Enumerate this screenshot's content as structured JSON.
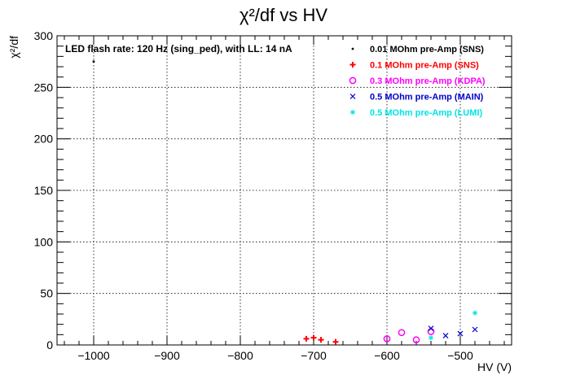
{
  "chart_data": {
    "type": "scatter",
    "title": "χ²/df vs HV",
    "xlabel": "HV (V)",
    "ylabel": "χ²/df",
    "xlim": [
      -1050,
      -430
    ],
    "ylim": [
      0,
      300
    ],
    "x_ticks": [
      -1000,
      -900,
      -800,
      -700,
      -600,
      -500
    ],
    "y_ticks": [
      0,
      50,
      100,
      150,
      200,
      250,
      300
    ],
    "grid": true,
    "legend_position": "top-right",
    "header_text": "LED flash rate: 120 Hz  (sing_ped), with LL: 14 nA",
    "series": [
      {
        "name": "0.01 MOhm pre-Amp (SNS)",
        "marker": "dot",
        "color": "#000000",
        "points": [
          [
            -1000,
            275
          ]
        ]
      },
      {
        "name": "0.1 MOhm pre-Amp (SNS)",
        "marker": "plus",
        "color": "#ff0000",
        "points": [
          [
            -710,
            6
          ],
          [
            -700,
            7
          ],
          [
            -690,
            5
          ],
          [
            -670,
            3
          ]
        ]
      },
      {
        "name": "0.3 MOhm pre-Amp (KDPA)",
        "marker": "circle",
        "color": "#ff00ff",
        "points": [
          [
            -600,
            6
          ],
          [
            -580,
            12
          ],
          [
            -560,
            5
          ],
          [
            -540,
            13
          ]
        ]
      },
      {
        "name": "0.5 MOhm pre-Amp (MAIN)",
        "marker": "cross",
        "color": "#0000cc",
        "points": [
          [
            -540,
            16
          ],
          [
            -520,
            9
          ],
          [
            -500,
            11
          ],
          [
            -480,
            15
          ]
        ]
      },
      {
        "name": "0.5 MOhm pre-Amp (LUMI)",
        "marker": "star",
        "color": "#00e5e5",
        "points": [
          [
            -540,
            7
          ],
          [
            -480,
            31
          ]
        ]
      }
    ]
  }
}
